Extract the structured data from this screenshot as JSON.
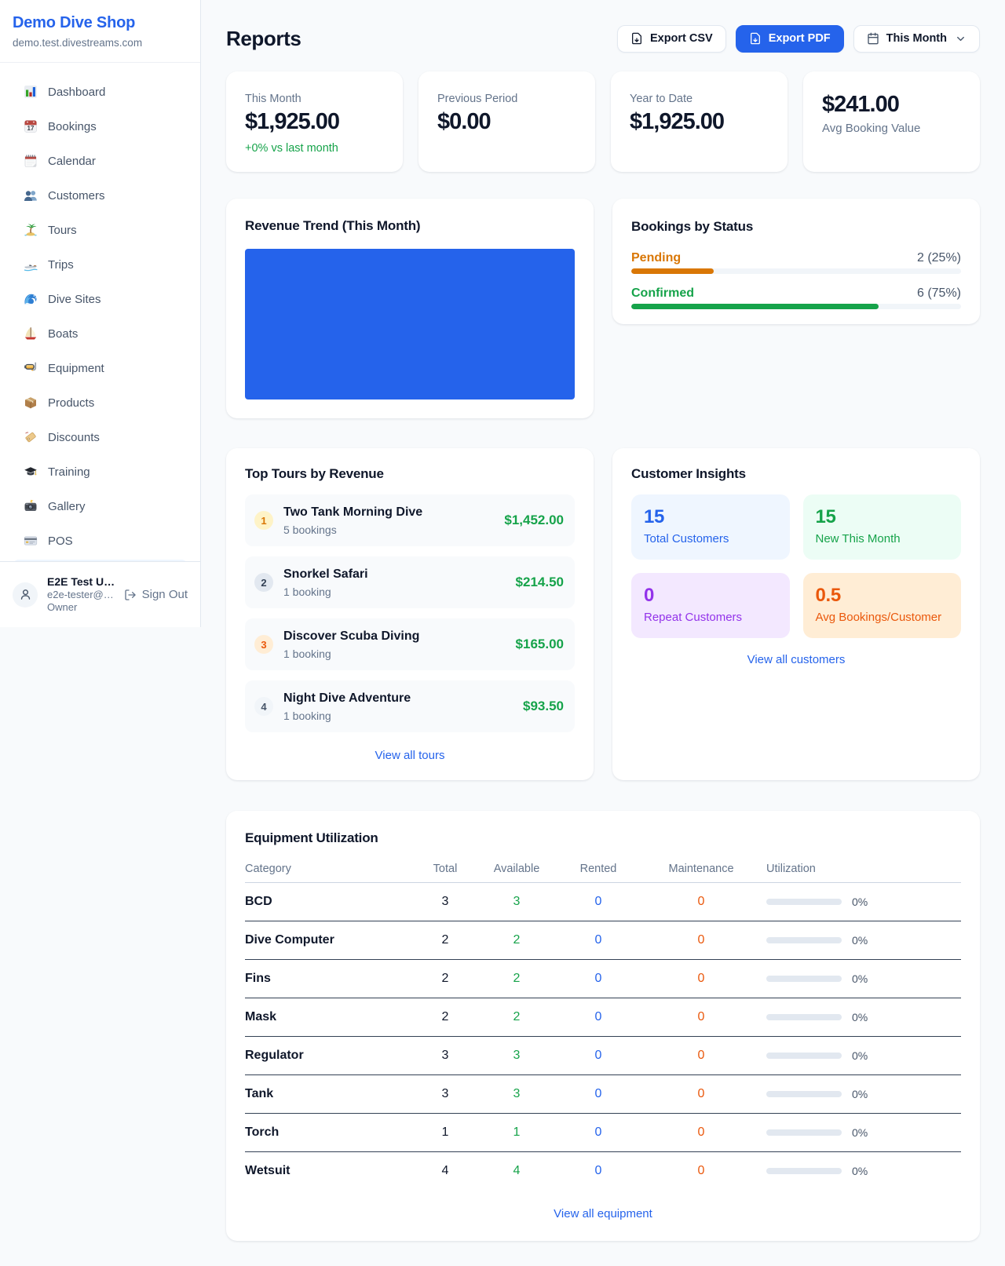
{
  "colors": {
    "accent_blue": "#2563eb",
    "green": "#16a34a",
    "amber": "#d97706",
    "orange": "#ea580c",
    "purple": "#9333ea"
  },
  "sidebar": {
    "brand": {
      "name": "Demo Dive Shop",
      "domain": "demo.test.divestreams.com"
    },
    "nav": [
      {
        "icon": "bar-chart",
        "label": "Dashboard"
      },
      {
        "icon": "calendar-date",
        "label": "Bookings"
      },
      {
        "icon": "tear-calendar",
        "label": "Calendar"
      },
      {
        "icon": "people",
        "label": "Customers"
      },
      {
        "icon": "island",
        "label": "Tours"
      },
      {
        "icon": "speedboat",
        "label": "Trips"
      },
      {
        "icon": "wave",
        "label": "Dive Sites"
      },
      {
        "icon": "sailboat",
        "label": "Boats"
      },
      {
        "icon": "dive-mask",
        "label": "Equipment"
      },
      {
        "icon": "package",
        "label": "Products"
      },
      {
        "icon": "tag",
        "label": "Discounts"
      },
      {
        "icon": "grad-cap",
        "label": "Training"
      },
      {
        "icon": "camera",
        "label": "Gallery"
      },
      {
        "icon": "credit-card",
        "label": "POS"
      }
    ],
    "user": {
      "name": "E2E Test U…",
      "email": "e2e-tester@…",
      "role": "Owner",
      "sign_out": "Sign Out"
    }
  },
  "header": {
    "title": "Reports",
    "export_csv": "Export CSV",
    "export_pdf": "Export PDF",
    "period": "This Month"
  },
  "stats": [
    {
      "label": "This Month",
      "value": "$1,925.00",
      "delta": "+0% vs last month"
    },
    {
      "label": "Previous Period",
      "value": "$0.00",
      "delta": ""
    },
    {
      "label": "Year to Date",
      "value": "$1,925.00",
      "delta": ""
    },
    {
      "label": "Avg Booking Value",
      "value": "$241.00",
      "delta": "",
      "value_first": true
    }
  ],
  "revenue_trend": {
    "title": "Revenue Trend (This Month)",
    "bar_color": "#2563eb"
  },
  "chart_data": [
    {
      "type": "bar",
      "title": "Revenue Trend (This Month)",
      "categories": [
        "This Month"
      ],
      "values": [
        1925.0
      ],
      "ylim": [
        0,
        1925
      ],
      "note": "single full-width bar filling the plot area at 100%"
    },
    {
      "type": "bar",
      "title": "Bookings by Status",
      "categories": [
        "Pending",
        "Confirmed"
      ],
      "values": [
        2,
        6
      ],
      "percentages": [
        25,
        75
      ]
    }
  ],
  "bookings_by_status": {
    "title": "Bookings by Status",
    "rows": [
      {
        "label": "Pending",
        "value": "2 (25%)",
        "pct": 25,
        "color": "#d97706"
      },
      {
        "label": "Confirmed",
        "value": "6 (75%)",
        "pct": 75,
        "color": "#16a34a"
      }
    ]
  },
  "top_tours": {
    "title": "Top Tours by Revenue",
    "rows": [
      {
        "rank": "1",
        "name": "Two Tank Morning Dive",
        "bookings": "5 bookings",
        "revenue": "$1,452.00"
      },
      {
        "rank": "2",
        "name": "Snorkel Safari",
        "bookings": "1 booking",
        "revenue": "$214.50"
      },
      {
        "rank": "3",
        "name": "Discover Scuba Diving",
        "bookings": "1 booking",
        "revenue": "$165.00"
      },
      {
        "rank": "4",
        "name": "Night Dive Adventure",
        "bookings": "1 booking",
        "revenue": "$93.50"
      }
    ],
    "view_all": "View all tours"
  },
  "customer_insights": {
    "title": "Customer Insights",
    "tiles": [
      {
        "value": "15",
        "label": "Total Customers",
        "bg": "#eff6ff",
        "fg": "#2563eb"
      },
      {
        "value": "15",
        "label": "New This Month",
        "bg": "#ecfdf5",
        "fg": "#16a34a"
      },
      {
        "value": "0",
        "label": "Repeat Customers",
        "bg": "#f3e8ff",
        "fg": "#9333ea"
      },
      {
        "value": "0.5",
        "label": "Avg Bookings/Customer",
        "bg": "#ffedd5",
        "fg": "#ea580c"
      }
    ],
    "view_all": "View all customers"
  },
  "equipment": {
    "title": "Equipment Utilization",
    "columns": [
      "Category",
      "Total",
      "Available",
      "Rented",
      "Maintenance",
      "Utilization"
    ],
    "rows": [
      {
        "category": "BCD",
        "total": "3",
        "available": "3",
        "rented": "0",
        "maintenance": "0",
        "utilization": "0%",
        "pct": 0
      },
      {
        "category": "Dive Computer",
        "total": "2",
        "available": "2",
        "rented": "0",
        "maintenance": "0",
        "utilization": "0%",
        "pct": 0
      },
      {
        "category": "Fins",
        "total": "2",
        "available": "2",
        "rented": "0",
        "maintenance": "0",
        "utilization": "0%",
        "pct": 0
      },
      {
        "category": "Mask",
        "total": "2",
        "available": "2",
        "rented": "0",
        "maintenance": "0",
        "utilization": "0%",
        "pct": 0
      },
      {
        "category": "Regulator",
        "total": "3",
        "available": "3",
        "rented": "0",
        "maintenance": "0",
        "utilization": "0%",
        "pct": 0
      },
      {
        "category": "Tank",
        "total": "3",
        "available": "3",
        "rented": "0",
        "maintenance": "0",
        "utilization": "0%",
        "pct": 0
      },
      {
        "category": "Torch",
        "total": "1",
        "available": "1",
        "rented": "0",
        "maintenance": "0",
        "utilization": "0%",
        "pct": 0
      },
      {
        "category": "Wetsuit",
        "total": "4",
        "available": "4",
        "rented": "0",
        "maintenance": "0",
        "utilization": "0%",
        "pct": 0
      }
    ],
    "view_all": "View all equipment"
  }
}
